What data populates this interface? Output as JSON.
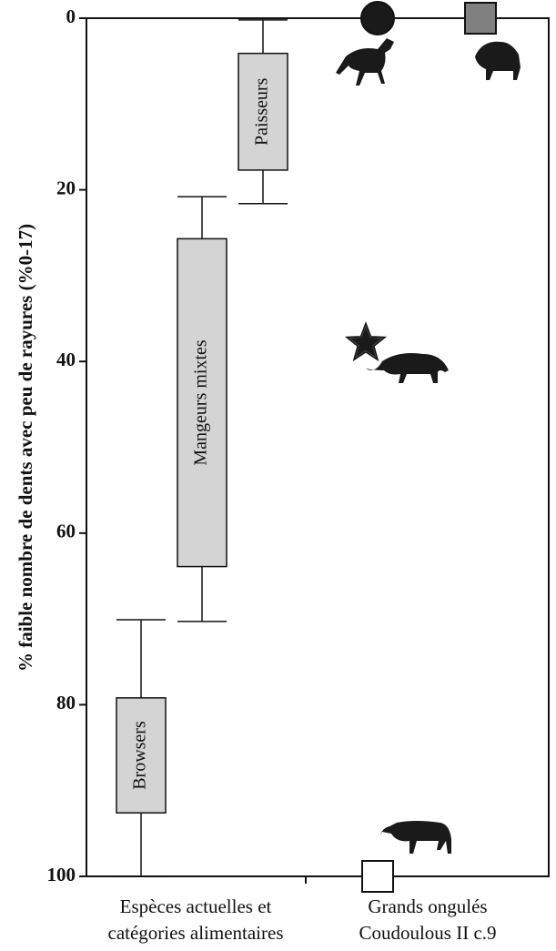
{
  "chart_data": {
    "type": "box",
    "y_label": "% faible nombre de dents avec peu de rayures (%0-17)",
    "categories": [
      [
        "Espèces actuelles et",
        "catégories alimentaires"
      ],
      [
        "Grands ongulés",
        "Coudoulous II c.9"
      ]
    ],
    "ylim": [
      0,
      100
    ],
    "yticks": [
      0,
      20,
      40,
      60,
      80,
      100
    ],
    "y_inverted": true,
    "box_color": "#d4d4d4",
    "boxes": [
      {
        "label": "Browsers",
        "whisker_low": 70.1,
        "q1": 79.2,
        "q3": 92.6,
        "whisker_high": 100
      },
      {
        "label": "Mangeurs mixtes",
        "whisker_low": 20.8,
        "q1": 25.7,
        "q3": 63.9,
        "whisker_high": 70.3
      },
      {
        "label": "Paisseurs",
        "whisker_low": 0.2,
        "q1": 4.1,
        "q3": 17.7,
        "whisker_high": 21.6
      }
    ],
    "points": [
      {
        "marker": "circle",
        "color": "#1a1a1a",
        "value": 0
      },
      {
        "marker": "square",
        "color": "#808080",
        "value": 0
      },
      {
        "marker": "star",
        "color": "#1a1a1a",
        "value": 37.9
      },
      {
        "marker": "square",
        "color": "#ffffff",
        "value": 100
      }
    ]
  }
}
